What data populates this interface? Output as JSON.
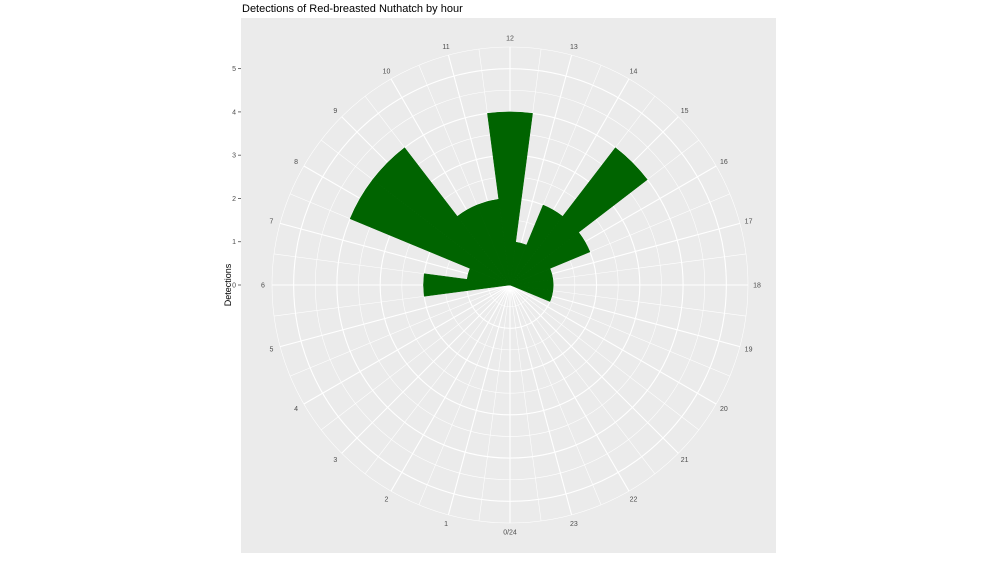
{
  "chart_data": {
    "type": "bar",
    "polar": true,
    "title": "Detections of Red-breasted Nuthatch by hour",
    "xlabel": "",
    "ylabel": "Detections",
    "x_ticks": [
      "0/24",
      "1",
      "2",
      "3",
      "4",
      "5",
      "6",
      "7",
      "8",
      "9",
      "10",
      "11",
      "12",
      "13",
      "14",
      "15",
      "16",
      "17",
      "18",
      "19",
      "20",
      "21",
      "22",
      "23"
    ],
    "y_ticks": [
      "0",
      "1",
      "2",
      "3",
      "4",
      "5"
    ],
    "ylim": [
      0,
      5.5
    ],
    "bar_color": "#006400",
    "panel_color": "#EBEBEB",
    "grid_color": "#FFFFFF",
    "hours": [
      6,
      7,
      8,
      9,
      10,
      11,
      12,
      13,
      14,
      15,
      16,
      17,
      18,
      19
    ],
    "values": [
      2,
      1,
      4,
      4,
      2,
      2,
      4,
      1,
      2,
      4,
      2,
      1,
      1,
      1
    ]
  }
}
